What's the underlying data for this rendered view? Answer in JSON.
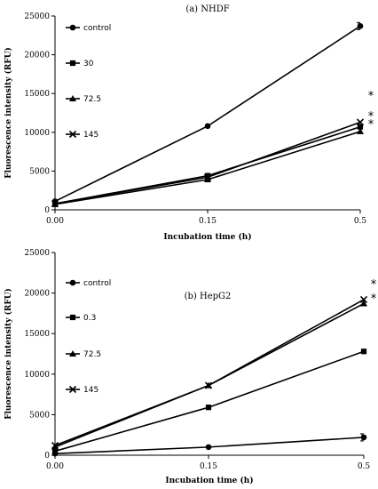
{
  "chart_data": [
    {
      "type": "line",
      "title": "(a) NHDF",
      "xlabel": "Incubation  time (h)",
      "ylabel": "Fluorescence intensity (RFU)",
      "x": [
        "0.00",
        "0.15",
        "0.5"
      ],
      "ylim": [
        0,
        25000
      ],
      "yticks": [
        "0",
        "5000",
        "10000",
        "15000",
        "20000",
        "25000"
      ],
      "grid": false,
      "legend_position": "top-left",
      "series": [
        {
          "name": "control",
          "marker": "circle",
          "values": [
            1100,
            10800,
            23700
          ]
        },
        {
          "name": "30",
          "marker": "square",
          "values": [
            800,
            4400,
            10700
          ]
        },
        {
          "name": "72.5",
          "marker": "triangle",
          "values": [
            700,
            3900,
            10100
          ]
        },
        {
          "name": "145",
          "marker": "cross",
          "values": [
            800,
            4200,
            11300
          ]
        }
      ],
      "annotations": [
        "*",
        "*",
        "*"
      ]
    },
    {
      "type": "line",
      "title": "(b) HepG2",
      "xlabel": "Incubation  time (h)",
      "ylabel": "Fluorescence intensity (RFU)",
      "x": [
        "0.00",
        "0.15",
        "0.5"
      ],
      "ylim": [
        0,
        25000
      ],
      "yticks": [
        "0",
        "5000",
        "10000",
        "15000",
        "20000",
        "25000"
      ],
      "grid": false,
      "legend_position": "top-left",
      "series": [
        {
          "name": "control",
          "marker": "circle",
          "values": [
            200,
            1000,
            2200
          ]
        },
        {
          "name": "0.3",
          "marker": "square",
          "values": [
            500,
            5900,
            12800
          ]
        },
        {
          "name": "72.5",
          "marker": "triangle",
          "values": [
            1000,
            8600,
            18700
          ]
        },
        {
          "name": "145",
          "marker": "cross",
          "values": [
            1200,
            8600,
            19200
          ]
        }
      ],
      "annotations": [
        "*",
        "*"
      ]
    }
  ]
}
